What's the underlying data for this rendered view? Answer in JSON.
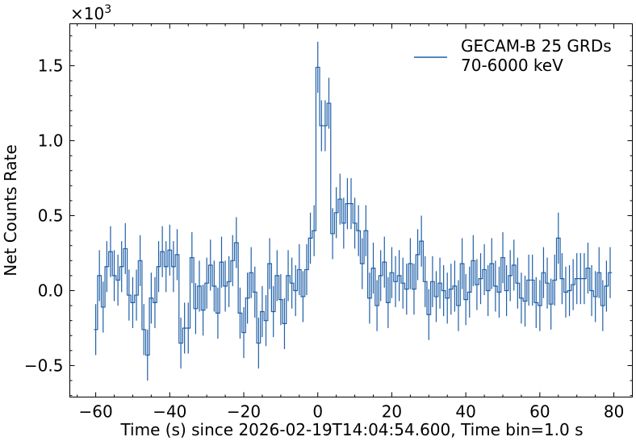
{
  "chart_data": {
    "type": "line",
    "style": "step-with-errorbars",
    "xlabel": "Time (s) since 2026-02-19T14:04:54.600, Time bin=1.0 s",
    "ylabel": "Net Counts Rate",
    "y_scale_label": "×10",
    "y_scale_exponent": "3",
    "xlim": [
      -67,
      85
    ],
    "ylim": [
      -0.71,
      1.78
    ],
    "x_ticks": [
      -60,
      -40,
      -20,
      0,
      20,
      40,
      60,
      80
    ],
    "x_tick_labels": [
      "−60",
      "−40",
      "−20",
      "0",
      "20",
      "40",
      "60",
      "80"
    ],
    "y_ticks": [
      -0.5,
      0.0,
      0.5,
      1.0,
      1.5
    ],
    "y_tick_labels": [
      "−0.5",
      "0.0",
      "0.5",
      "1.0",
      "1.5"
    ],
    "grid": false,
    "legend_position": "top-right",
    "legend": [
      "GECAM-B 25 GRDs",
      "70-6000 keV"
    ],
    "series": [
      {
        "color": "#1f5fa8",
        "error": 0.17,
        "x": [
          -60,
          -59,
          -58,
          -57,
          -56,
          -55,
          -54,
          -53,
          -52,
          -51,
          -50,
          -49,
          -48,
          -47,
          -46,
          -45,
          -44,
          -43,
          -42,
          -41,
          -40,
          -39,
          -38,
          -37,
          -36,
          -35,
          -34,
          -33,
          -32,
          -31,
          -30,
          -29,
          -28,
          -27,
          -26,
          -25,
          -24,
          -23,
          -22,
          -21,
          -20,
          -19,
          -18,
          -17,
          -16,
          -15,
          -14,
          -13,
          -12,
          -11,
          -10,
          -9,
          -8,
          -7,
          -6,
          -5,
          -4,
          -3,
          -2,
          -1,
          0,
          1,
          2,
          3,
          4,
          5,
          6,
          7,
          8,
          9,
          10,
          11,
          12,
          13,
          14,
          15,
          16,
          17,
          18,
          19,
          20,
          21,
          22,
          23,
          24,
          25,
          26,
          27,
          28,
          29,
          30,
          31,
          32,
          33,
          34,
          35,
          36,
          37,
          38,
          39,
          40,
          41,
          42,
          43,
          44,
          45,
          46,
          47,
          48,
          49,
          50,
          51,
          52,
          53,
          54,
          55,
          56,
          57,
          58,
          59,
          60,
          61,
          62,
          63,
          64,
          65,
          66,
          67,
          68,
          69,
          70,
          71,
          72,
          73,
          74,
          75,
          76,
          77,
          78,
          79
        ],
        "y": [
          -0.26,
          0.1,
          -0.11,
          0.16,
          0.26,
          0.1,
          0.07,
          0.16,
          0.28,
          -0.03,
          -0.08,
          -0.03,
          0.2,
          -0.26,
          -0.43,
          -0.05,
          -0.08,
          0.16,
          0.26,
          0.16,
          0.27,
          0.16,
          0.24,
          -0.35,
          -0.25,
          -0.25,
          0.22,
          -0.12,
          0.03,
          -0.13,
          0.05,
          0.17,
          0.03,
          -0.15,
          0.19,
          0.03,
          0.06,
          0.2,
          0.32,
          -0.15,
          -0.28,
          -0.05,
          0.12,
          -0.01,
          -0.35,
          -0.14,
          -0.2,
          0.18,
          -0.14,
          0.1,
          -0.06,
          -0.22,
          0.1,
          0.05,
          0.0,
          0.14,
          -0.04,
          0.14,
          0.35,
          0.4,
          1.49,
          1.1,
          1.1,
          1.25,
          0.38,
          0.52,
          0.61,
          0.45,
          0.58,
          0.58,
          0.45,
          0.4,
          0.18,
          0.4,
          -0.05,
          0.15,
          -0.1,
          0.1,
          0.19,
          -0.08,
          0.12,
          0.06,
          0.1,
          0.05,
          0.01,
          0.18,
          0.01,
          0.24,
          0.33,
          0.06,
          -0.16,
          0.06,
          -0.04,
          0.05,
          0.0,
          -0.05,
          0.01,
          0.03,
          -0.1,
          0.18,
          -0.06,
          -0.01,
          0.2,
          0.04,
          0.08,
          0.14,
          0.0,
          0.18,
          0.03,
          -0.01,
          0.22,
          0.0,
          0.1,
          0.17,
          0.05,
          -0.05,
          -0.07,
          0.07,
          0.07,
          -0.08,
          -0.1,
          0.12,
          0.05,
          -0.09,
          0.07,
          0.35,
          0.08,
          -0.01,
          0.0,
          0.04,
          0.08,
          0.08,
          0.08,
          0.15,
          0.0,
          -0.04,
          0.12,
          -0.1,
          0.03,
          0.12
        ]
      }
    ]
  }
}
